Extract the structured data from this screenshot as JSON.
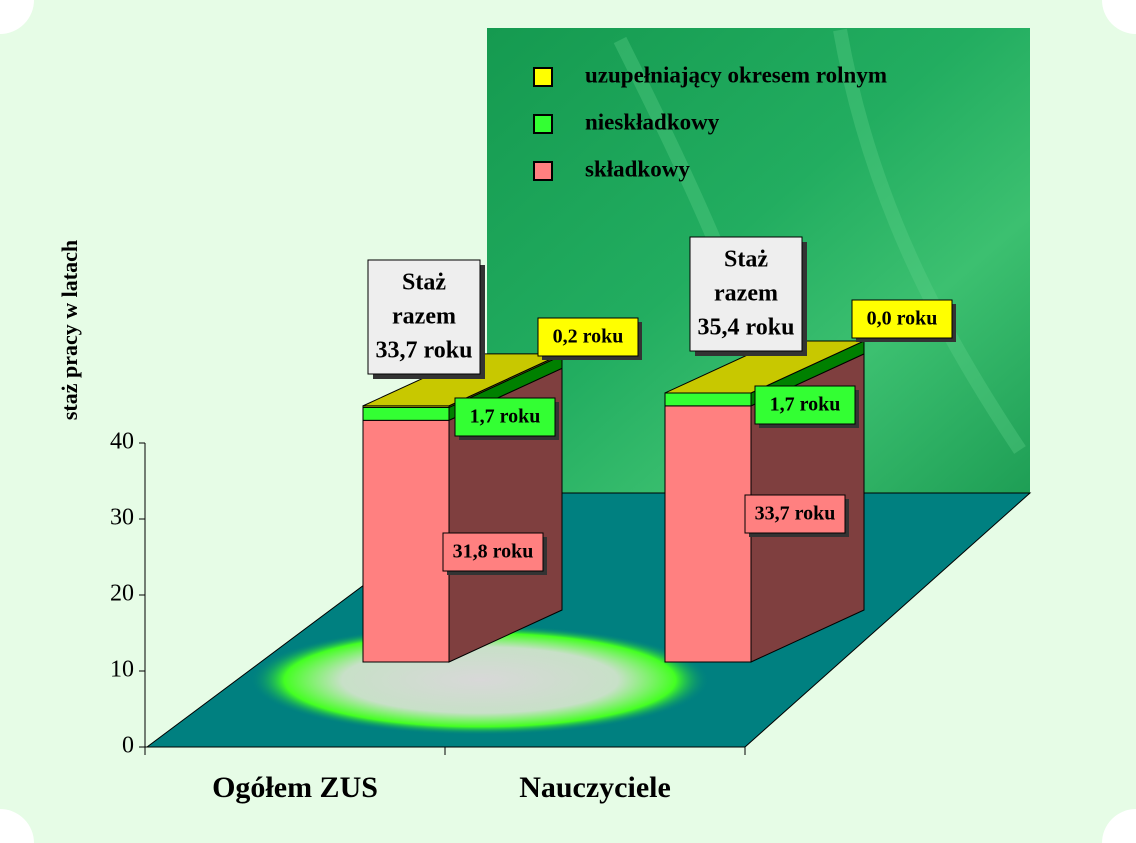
{
  "chart_data": {
    "type": "bar3d_stacked",
    "y_axis_label": "staż pracy w latach",
    "categories": [
      "Ogółem ZUS",
      "Nauczyciele"
    ],
    "series": [
      {
        "name": "składkowy",
        "color": "#ff8080",
        "side_color": "#7f3f3f",
        "values": [
          31.8,
          33.7
        ],
        "value_labels": [
          "31,8 roku",
          "33,7 roku"
        ]
      },
      {
        "name": "nieskładkowy",
        "color": "#33ff33",
        "side_color": "#008000",
        "values": [
          1.7,
          1.7
        ],
        "value_labels": [
          "1,7 roku",
          "1,7 roku"
        ]
      },
      {
        "name": "uzupełniający okresem rolnym",
        "color": "#ffff00",
        "side_color": "#808000",
        "top_color": "#c8c800",
        "values": [
          0.2,
          0.0
        ],
        "value_labels": [
          "0,2 roku",
          "0,0 roku"
        ]
      }
    ],
    "total_labels": [
      [
        "Staż",
        "razem",
        "33,7 roku"
      ],
      [
        "Staż",
        "razem",
        "35,4 roku"
      ]
    ],
    "ylim": [
      0,
      40
    ],
    "yticks": [
      0,
      10,
      20,
      30,
      40
    ]
  }
}
